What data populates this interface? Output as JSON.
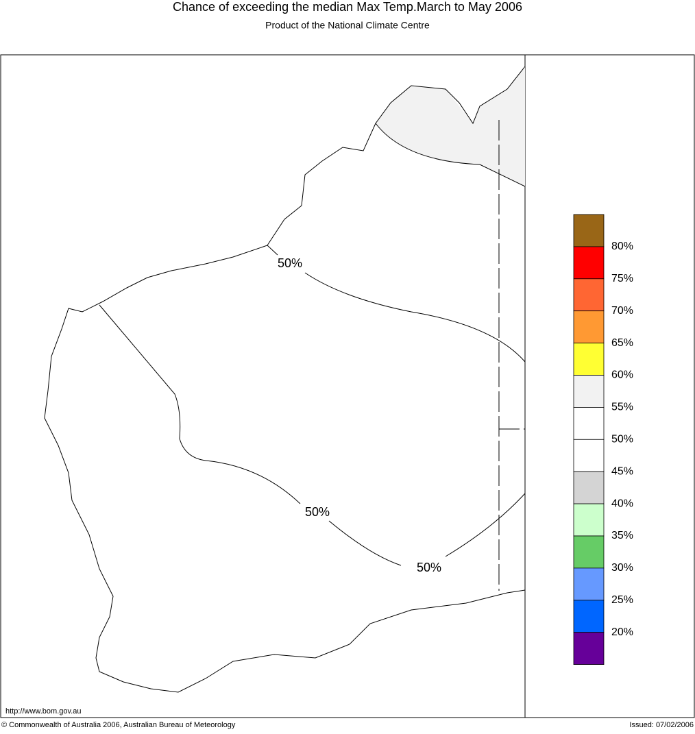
{
  "header": {
    "title": "Chance of exceeding the median Max Temp.March to May 2006",
    "subtitle": "Product of the National Climate Centre"
  },
  "map": {
    "contour_labels": [
      "50%",
      "50%",
      "50%"
    ]
  },
  "legend": {
    "colors": [
      "#996617",
      "#ff0000",
      "#ff6633",
      "#ff9933",
      "#ffff33",
      "#f2f2f2",
      "#ffffff",
      "#ffffff",
      "#d4d4d4",
      "#ccffcc",
      "#66cc66",
      "#6699ff",
      "#0066ff",
      "#660099"
    ],
    "labels": [
      "80%",
      "75%",
      "70%",
      "65%",
      "60%",
      "55%",
      "50%",
      "45%",
      "40%",
      "35%",
      "30%",
      "25%",
      "20%"
    ]
  },
  "footer": {
    "url": "http://www.bom.gov.au",
    "copyright": "© Commonwealth of Australia 2006, Australian Bureau of Meteorology",
    "issued": "Issued: 07/02/2006"
  }
}
